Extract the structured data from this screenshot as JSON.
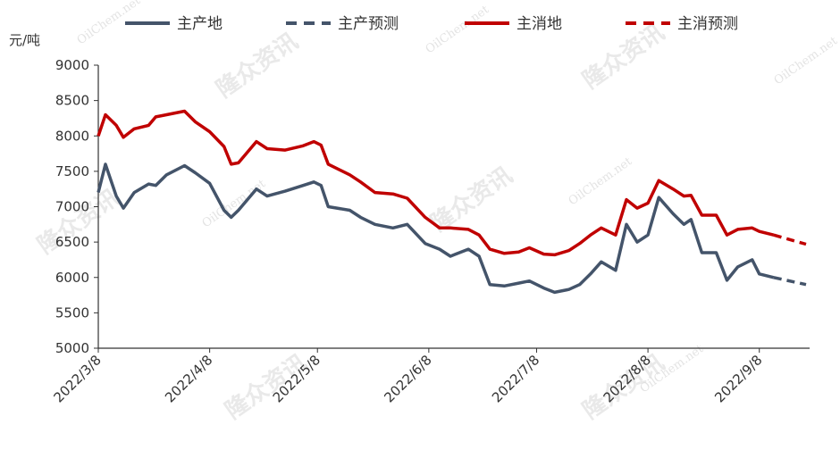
{
  "chart_data": {
    "type": "line",
    "y_label": "元/吨",
    "watermarks": [
      "隆众资讯",
      "OilChem.net"
    ],
    "x": [
      "2022/3/8",
      "2022/3/10",
      "2022/3/13",
      "2022/3/15",
      "2022/3/18",
      "2022/3/22",
      "2022/3/24",
      "2022/3/27",
      "2022/4/1",
      "2022/4/4",
      "2022/4/8",
      "2022/4/12",
      "2022/4/14",
      "2022/4/16",
      "2022/4/21",
      "2022/4/24",
      "2022/4/29",
      "2022/5/4",
      "2022/5/7",
      "2022/5/9",
      "2022/5/11",
      "2022/5/17",
      "2022/5/20",
      "2022/5/24",
      "2022/5/29",
      "2022/6/2",
      "2022/6/7",
      "2022/6/11",
      "2022/6/14",
      "2022/6/19",
      "2022/6/22",
      "2022/6/25",
      "2022/6/29",
      "2022/7/3",
      "2022/7/6",
      "2022/7/10",
      "2022/7/13",
      "2022/7/17",
      "2022/7/20",
      "2022/7/23",
      "2022/7/26",
      "2022/7/30",
      "2022/8/2",
      "2022/8/5",
      "2022/8/8",
      "2022/8/11",
      "2022/8/15",
      "2022/8/18",
      "2022/8/20",
      "2022/8/23",
      "2022/8/27",
      "2022/8/30",
      "2022/9/2",
      "2022/9/6",
      "2022/9/8",
      "2022/9/12",
      "2022/9/21"
    ],
    "series": [
      {
        "name": "主产地",
        "color": "#44546a",
        "dashed": false,
        "values": [
          7200,
          7600,
          7150,
          6980,
          7200,
          7320,
          7300,
          7450,
          7580,
          7480,
          7330,
          6950,
          6850,
          6950,
          7250,
          7150,
          7220,
          7300,
          7350,
          7300,
          7000,
          6950,
          6850,
          6750,
          6700,
          6750,
          6480,
          6400,
          6300,
          6400,
          6300,
          5900,
          5880,
          5920,
          5950,
          5850,
          5790,
          5830,
          5900,
          6050,
          6220,
          6100,
          6750,
          6500,
          6600,
          7130,
          6900,
          6750,
          6820,
          6350,
          6350,
          5960,
          6150,
          6250,
          6050,
          6000,
          null
        ]
      },
      {
        "name": "主产预测",
        "color": "#44546a",
        "dashed": true,
        "values": [
          null,
          null,
          null,
          null,
          null,
          null,
          null,
          null,
          null,
          null,
          null,
          null,
          null,
          null,
          null,
          null,
          null,
          null,
          null,
          null,
          null,
          null,
          null,
          null,
          null,
          null,
          null,
          null,
          null,
          null,
          null,
          null,
          null,
          null,
          null,
          null,
          null,
          null,
          null,
          null,
          null,
          null,
          null,
          null,
          null,
          null,
          null,
          null,
          null,
          null,
          null,
          null,
          null,
          null,
          null,
          6000,
          5900
        ]
      },
      {
        "name": "主消地",
        "color": "#c00000",
        "dashed": false,
        "values": [
          8000,
          8300,
          8150,
          7980,
          8100,
          8150,
          8270,
          8300,
          8350,
          8200,
          8060,
          7850,
          7600,
          7620,
          7920,
          7820,
          7800,
          7860,
          7920,
          7870,
          7600,
          7450,
          7350,
          7200,
          7180,
          7120,
          6850,
          6700,
          6700,
          6680,
          6600,
          6400,
          6340,
          6360,
          6420,
          6330,
          6320,
          6380,
          6480,
          6600,
          6700,
          6600,
          7100,
          6980,
          7050,
          7370,
          7250,
          7150,
          7160,
          6880,
          6880,
          6600,
          6680,
          6700,
          6650,
          6600,
          null
        ]
      },
      {
        "name": "主消预测",
        "color": "#c00000",
        "dashed": true,
        "values": [
          null,
          null,
          null,
          null,
          null,
          null,
          null,
          null,
          null,
          null,
          null,
          null,
          null,
          null,
          null,
          null,
          null,
          null,
          null,
          null,
          null,
          null,
          null,
          null,
          null,
          null,
          null,
          null,
          null,
          null,
          null,
          null,
          null,
          null,
          null,
          null,
          null,
          null,
          null,
          null,
          null,
          null,
          null,
          null,
          null,
          null,
          null,
          null,
          null,
          null,
          null,
          null,
          null,
          null,
          null,
          6600,
          6470
        ]
      }
    ],
    "xlim": [
      "2022/3/8",
      "2022/9/22"
    ],
    "xticks": [
      "2022/3/8",
      "2022/4/8",
      "2022/5/8",
      "2022/6/8",
      "2022/7/8",
      "2022/8/8",
      "2022/9/8"
    ],
    "ylim": [
      5000,
      9000
    ],
    "yticks": [
      5000,
      5500,
      6000,
      6500,
      7000,
      7500,
      8000,
      8500,
      9000
    ],
    "legend": "top",
    "grid": false
  }
}
